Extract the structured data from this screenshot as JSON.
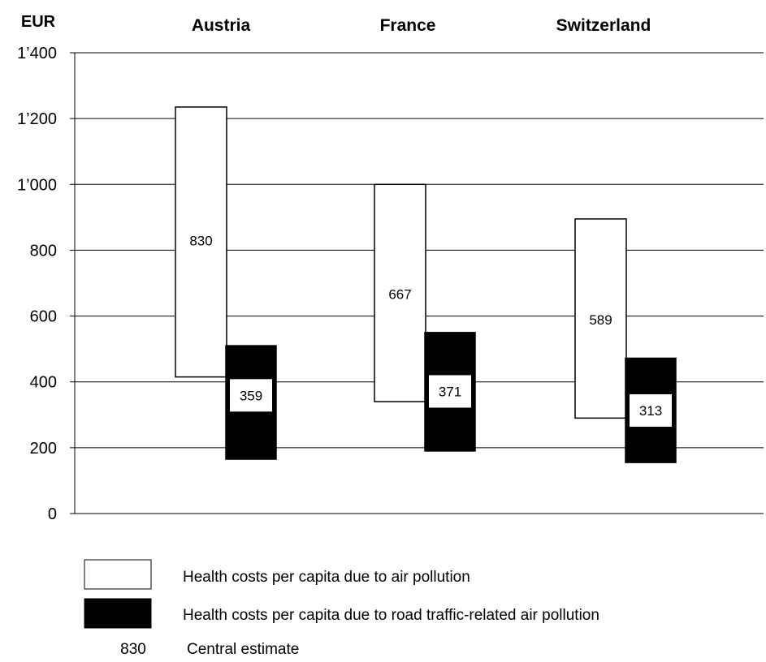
{
  "chart_data": {
    "type": "bar",
    "subtype": "floating-range",
    "ylabel": "EUR",
    "ylim": [
      0,
      1400
    ],
    "yticks": [
      0,
      200,
      400,
      600,
      800,
      1000,
      1200,
      1400
    ],
    "ytick_labels": [
      "0",
      "200",
      "400",
      "600",
      "800",
      "1’000",
      "1’200",
      "1’400"
    ],
    "grid": true,
    "categories": [
      "Austria",
      "France",
      "Switzerland"
    ],
    "series": [
      {
        "name": "Health costs per capita due to air pollution",
        "color": "#ffffff",
        "low": [
          415,
          340,
          290
        ],
        "high": [
          1235,
          1000,
          895
        ],
        "central": [
          830,
          667,
          589
        ],
        "central_labels": [
          "830",
          "667",
          "589"
        ]
      },
      {
        "name": "Health costs per capita due to road traffic-related air pollution",
        "color": "#000000",
        "low": [
          165,
          190,
          155
        ],
        "high": [
          510,
          550,
          472
        ],
        "central": [
          359,
          371,
          313
        ],
        "central_labels": [
          "359",
          "371",
          "313"
        ]
      }
    ],
    "legend": {
      "placement": "bottom",
      "entries": [
        "Health costs per capita due to air pollution",
        "Health costs per capita due to road traffic-related air pollution"
      ],
      "central_sample": "830",
      "central_text": "Central estimate"
    }
  }
}
